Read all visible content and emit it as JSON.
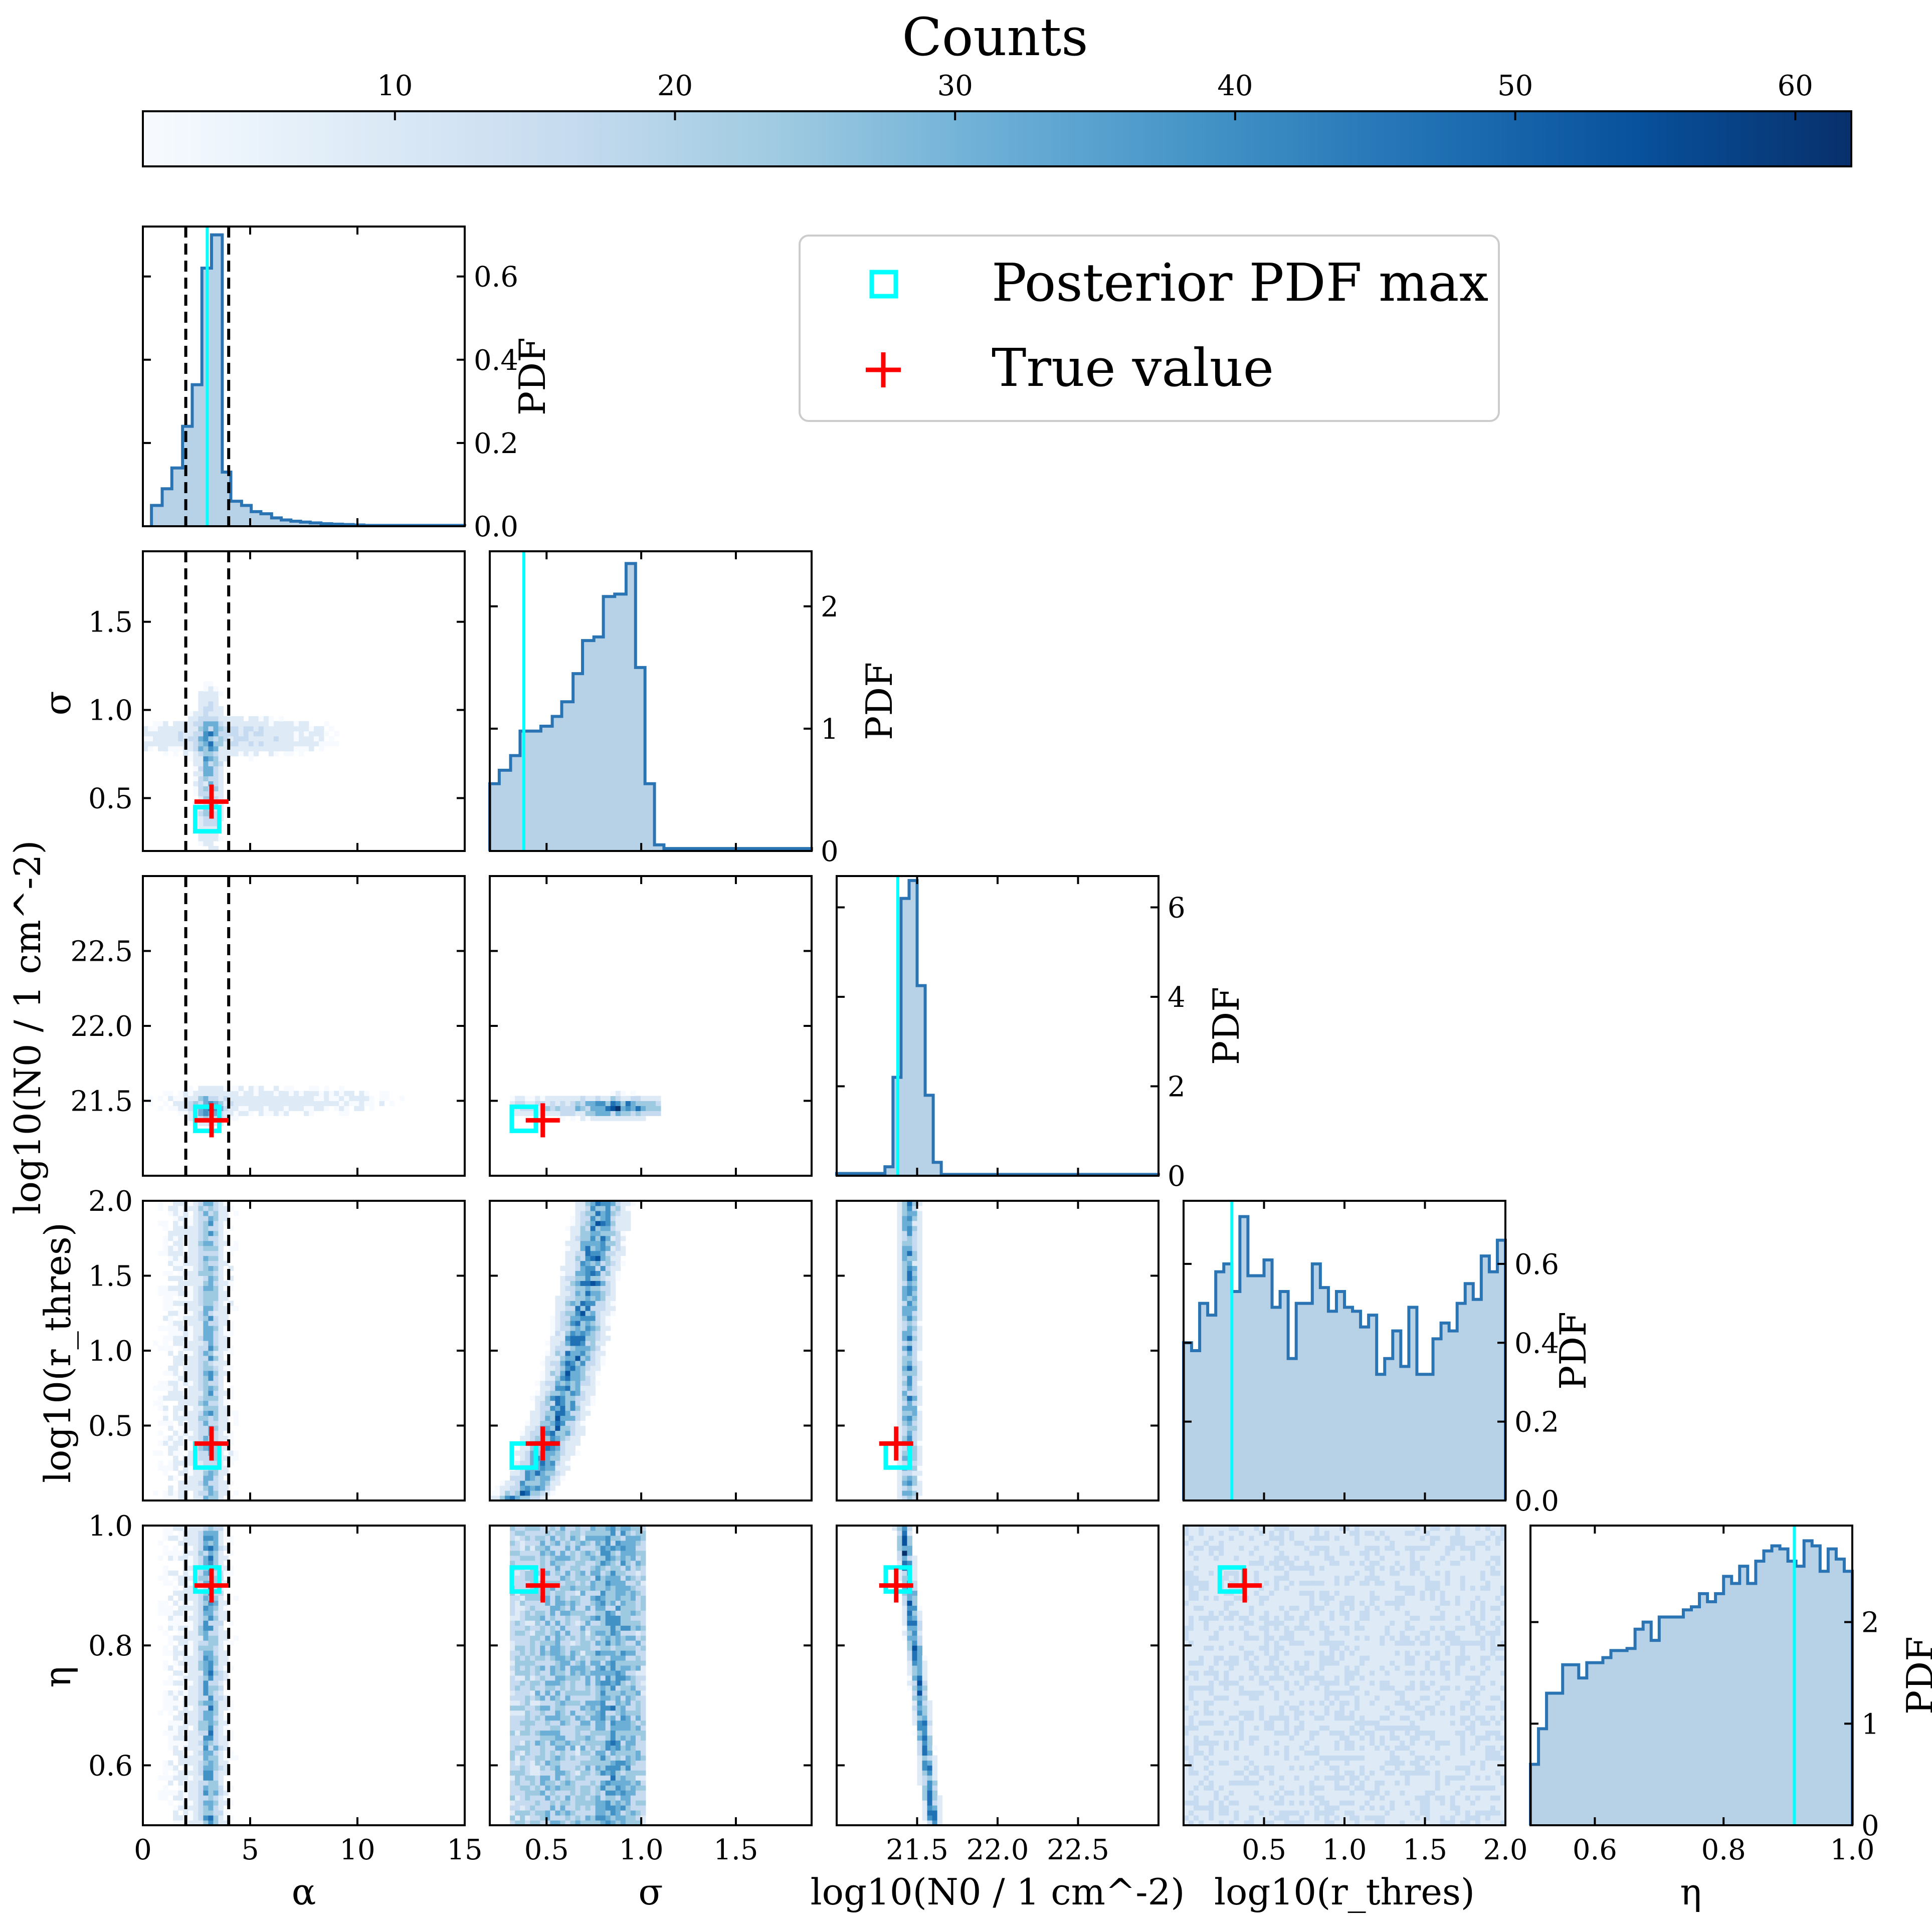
{
  "colors": {
    "hist_line": "#2a74b4",
    "hist_fill": "#b7d1e7",
    "posterior_max": "#00ffff",
    "true_value": "#ff0000",
    "dashed": "#000000",
    "cmap_low": "#f7fbff",
    "cmap_high": "#08306b"
  },
  "chart_data": {
    "type": "corner",
    "colorbar": {
      "title": "Counts",
      "range": [
        1,
        62
      ],
      "ticks": [
        10,
        20,
        30,
        40,
        50,
        60
      ],
      "tick_labels": [
        "10",
        "20",
        "30",
        "40",
        "50",
        "60"
      ]
    },
    "legend": {
      "position": "top-right",
      "entries": [
        {
          "label": "Posterior PDF max",
          "marker": "square",
          "color": "#00ffff"
        },
        {
          "label": "True value",
          "marker": "plus",
          "color": "#ff0000"
        }
      ]
    },
    "parameters": [
      {
        "name": "alpha",
        "label": "α",
        "range": [
          0,
          15
        ],
        "ticks": [
          0,
          5,
          10,
          15
        ],
        "tick_labels": [
          "0",
          "5",
          "10",
          "15"
        ],
        "posterior_max": 3.0,
        "true_value": 3.2,
        "dashed_bounds": [
          2.0,
          4.0
        ]
      },
      {
        "name": "sigma",
        "label": "σ",
        "range": [
          0.2,
          1.9
        ],
        "ticks": [
          0.5,
          1.0,
          1.5
        ],
        "tick_labels": [
          "0.5",
          "1.0",
          "1.5"
        ],
        "posterior_max": 0.38,
        "true_value": 0.48
      },
      {
        "name": "log_N0",
        "label": "log10(N0 / 1 cm^-2)",
        "range": [
          21.0,
          23.0
        ],
        "ticks": [
          21.5,
          22.0,
          22.5
        ],
        "tick_labels": [
          "21.5",
          "22.0",
          "22.5"
        ],
        "posterior_max": 21.38,
        "true_value": 21.37
      },
      {
        "name": "log_rthres",
        "label": "log10(r_thres)",
        "range": [
          0.0,
          2.0
        ],
        "ticks": [
          0.5,
          1.0,
          1.5,
          2.0
        ],
        "tick_labels": [
          "0.5",
          "1.0",
          "1.5",
          "2.0"
        ],
        "posterior_max": 0.3,
        "true_value": 0.38
      },
      {
        "name": "eta",
        "label": "η",
        "range": [
          0.5,
          1.0
        ],
        "ticks": [
          0.6,
          0.8,
          1.0
        ],
        "tick_labels": [
          "0.6",
          "0.8",
          "1.0"
        ],
        "posterior_max": 0.91,
        "true_value": 0.9
      }
    ],
    "y_tick_labels": {
      "sigma": [
        "0.5",
        "1.0",
        "1.5"
      ],
      "log_N0": [
        "21.5",
        "22.0",
        "22.5"
      ],
      "log_rthres": [
        "0.5",
        "1.0",
        "1.5",
        "2.0"
      ],
      "eta": [
        "0.6",
        "0.8",
        "1.0"
      ]
    },
    "marginals": [
      {
        "param": "alpha",
        "ylabel": "PDF",
        "pdf_range": [
          0,
          0.72
        ],
        "pdf_ticks": [
          0.0,
          0.2,
          0.4,
          0.6
        ],
        "pdf_tick_labels": [
          "0.0",
          "0.2",
          "0.4",
          "0.6"
        ],
        "bin_edges": [
          0.4,
          0.9,
          1.35,
          1.85,
          2.3,
          2.75,
          3.2,
          3.7,
          4.1,
          4.6,
          5.05,
          5.5,
          6.0,
          6.45,
          6.9,
          7.35,
          7.8,
          8.3,
          8.8,
          9.3,
          9.8,
          10.3,
          15.0
        ],
        "values": [
          0.05,
          0.09,
          0.14,
          0.24,
          0.34,
          0.62,
          0.7,
          0.13,
          0.06,
          0.05,
          0.035,
          0.03,
          0.02,
          0.015,
          0.012,
          0.01,
          0.008,
          0.006,
          0.005,
          0.004,
          0.003,
          0.002
        ]
      },
      {
        "param": "sigma",
        "ylabel": "PDF",
        "pdf_range": [
          0,
          2.45
        ],
        "pdf_ticks": [
          0,
          1,
          2
        ],
        "pdf_tick_labels": [
          "0",
          "1",
          "2"
        ],
        "bin_edges": [
          0.2,
          0.25,
          0.31,
          0.36,
          0.42,
          0.47,
          0.53,
          0.58,
          0.64,
          0.69,
          0.75,
          0.8,
          0.86,
          0.92,
          0.97,
          1.02,
          1.07,
          1.12,
          1.9
        ],
        "values": [
          0.55,
          0.66,
          0.78,
          0.98,
          0.98,
          1.02,
          1.1,
          1.22,
          1.45,
          1.72,
          1.75,
          2.08,
          2.1,
          2.35,
          1.5,
          0.55,
          0.05,
          0.02
        ]
      },
      {
        "param": "log_N0",
        "ylabel": "PDF",
        "pdf_range": [
          0,
          6.7
        ],
        "pdf_ticks": [
          0,
          2,
          4,
          6
        ],
        "pdf_tick_labels": [
          "0",
          "2",
          "4",
          "6"
        ],
        "bin_edges": [
          21.0,
          21.3,
          21.35,
          21.4,
          21.45,
          21.5,
          21.55,
          21.6,
          21.65,
          23.0
        ],
        "values": [
          0.05,
          0.2,
          2.2,
          6.2,
          6.6,
          4.25,
          1.8,
          0.3,
          0.03
        ]
      },
      {
        "param": "log_rthres",
        "ylabel": "PDF",
        "pdf_range": [
          0,
          0.76
        ],
        "pdf_ticks": [
          0.0,
          0.2,
          0.4,
          0.6
        ],
        "pdf_tick_labels": [
          "0.0",
          "0.2",
          "0.4",
          "0.6"
        ],
        "bin_edges": [
          0.0,
          0.05,
          0.1,
          0.15,
          0.2,
          0.25,
          0.3,
          0.35,
          0.4,
          0.45,
          0.5,
          0.55,
          0.6,
          0.65,
          0.7,
          0.75,
          0.8,
          0.85,
          0.9,
          0.95,
          1.0,
          1.05,
          1.1,
          1.15,
          1.2,
          1.25,
          1.3,
          1.35,
          1.4,
          1.45,
          1.5,
          1.55,
          1.6,
          1.65,
          1.7,
          1.75,
          1.8,
          1.85,
          1.9,
          1.95,
          2.0
        ],
        "values": [
          0.4,
          0.38,
          0.5,
          0.47,
          0.58,
          0.6,
          0.53,
          0.72,
          0.57,
          0.57,
          0.61,
          0.49,
          0.53,
          0.36,
          0.5,
          0.5,
          0.6,
          0.54,
          0.48,
          0.53,
          0.49,
          0.48,
          0.44,
          0.47,
          0.32,
          0.36,
          0.43,
          0.34,
          0.49,
          0.32,
          0.32,
          0.41,
          0.45,
          0.43,
          0.5,
          0.55,
          0.51,
          0.62,
          0.58,
          0.66
        ]
      },
      {
        "param": "eta",
        "ylabel": "PDF",
        "pdf_range": [
          0,
          2.95
        ],
        "pdf_ticks": [
          0,
          1,
          2
        ],
        "pdf_tick_labels": [
          "0",
          "1",
          "2"
        ],
        "bin_edges": [
          0.5,
          0.5125,
          0.525,
          0.5375,
          0.55,
          0.5625,
          0.575,
          0.5875,
          0.6,
          0.6125,
          0.625,
          0.6375,
          0.65,
          0.6625,
          0.675,
          0.6875,
          0.7,
          0.7125,
          0.725,
          0.7375,
          0.75,
          0.7625,
          0.775,
          0.7875,
          0.8,
          0.8125,
          0.825,
          0.8375,
          0.85,
          0.8625,
          0.875,
          0.8875,
          0.9,
          0.9125,
          0.925,
          0.9375,
          0.95,
          0.9625,
          0.975,
          0.9875,
          1.0
        ],
        "values": [
          0.6,
          0.95,
          1.3,
          1.3,
          1.58,
          1.58,
          1.45,
          1.6,
          1.6,
          1.65,
          1.72,
          1.72,
          1.74,
          1.93,
          2.0,
          1.82,
          2.05,
          2.05,
          2.05,
          2.12,
          2.15,
          2.28,
          2.2,
          2.28,
          2.45,
          2.38,
          2.55,
          2.38,
          2.6,
          2.7,
          2.75,
          2.72,
          2.6,
          2.55,
          2.8,
          2.75,
          2.5,
          2.72,
          2.62,
          2.5
        ]
      }
    ],
    "joint_panels": [
      {
        "x": "alpha",
        "y": "sigma",
        "description": "density concentrated near alpha≈3, sigma 0.3–0.95"
      },
      {
        "x": "alpha",
        "y": "log_N0",
        "description": "density concentrated near alpha≈3, log_N0≈21.4–21.5"
      },
      {
        "x": "sigma",
        "y": "log_N0",
        "description": "horizontal band log_N0≈21.45, sigma 0.3–1.1"
      },
      {
        "x": "alpha",
        "y": "log_rthres",
        "description": "vertical band at alpha≈3"
      },
      {
        "x": "sigma",
        "y": "log_rthres",
        "description": "curved band from (0.3,0.2) to (0.8,2.0)"
      },
      {
        "x": "log_N0",
        "y": "log_rthres",
        "description": "narrow vertical band log_N0≈21.45"
      },
      {
        "x": "alpha",
        "y": "eta",
        "description": "vertical band at alpha≈3"
      },
      {
        "x": "sigma",
        "y": "eta",
        "description": "broad band sigma 0.3–1.0"
      },
      {
        "x": "log_N0",
        "y": "eta",
        "description": "thin tilted band from (21.4,1.0) to (21.6,0.5)"
      },
      {
        "x": "log_rthres",
        "y": "eta",
        "description": "diffuse scatter"
      }
    ]
  }
}
